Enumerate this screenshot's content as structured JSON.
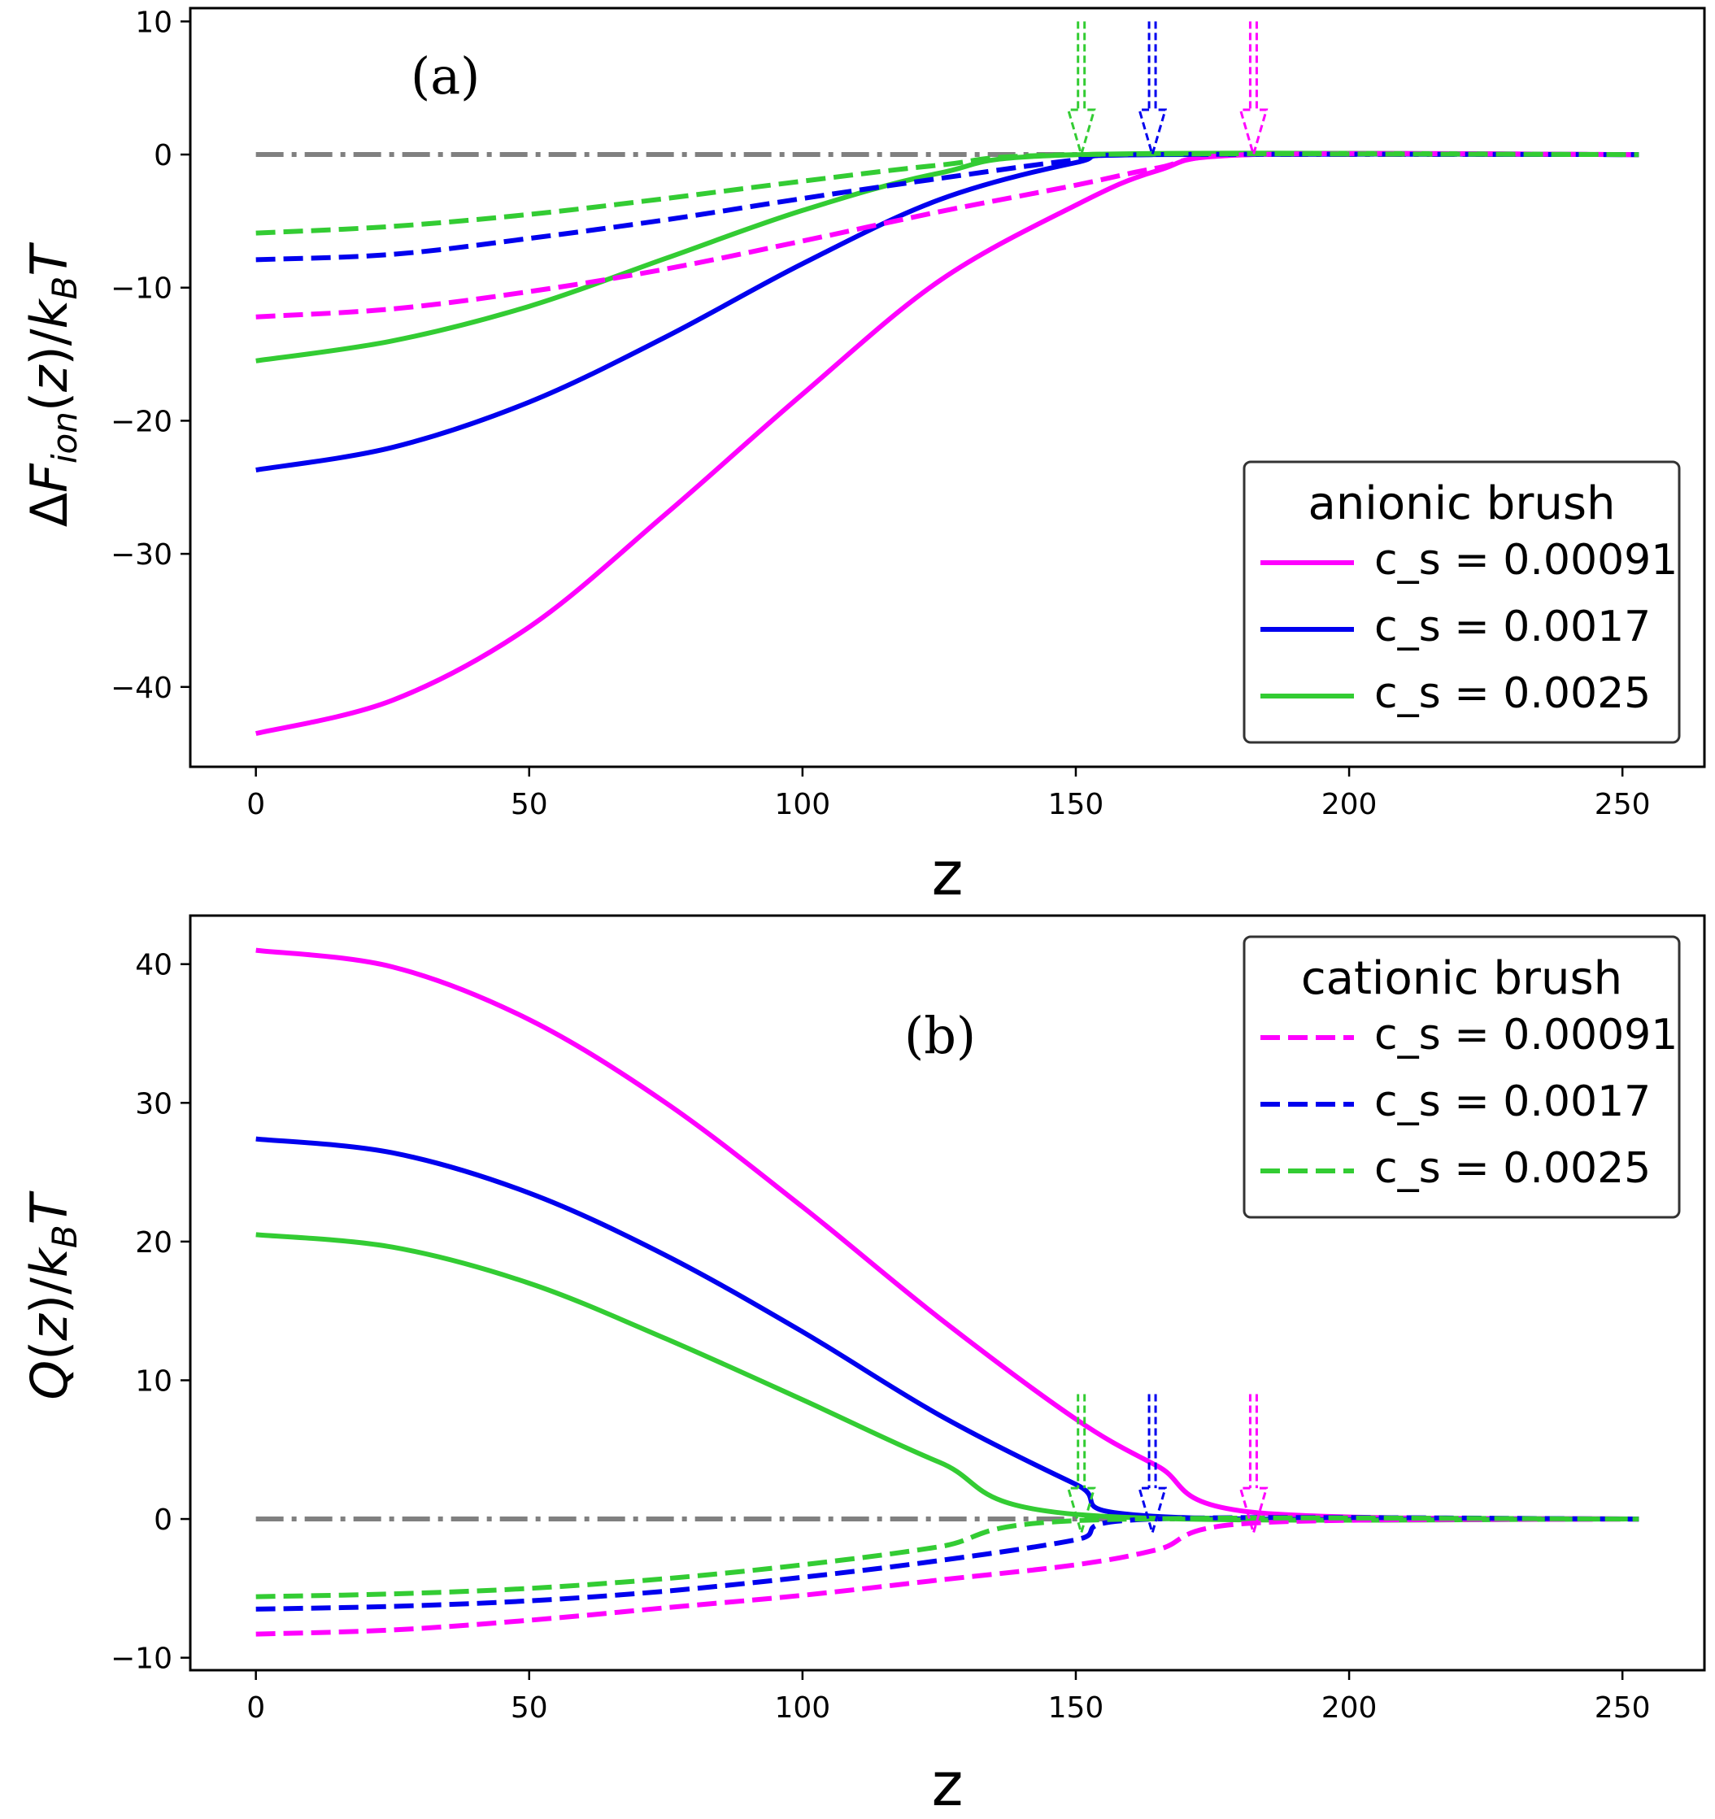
{
  "colors": {
    "magenta": "#ff00ff",
    "blue": "#0000ee",
    "green": "#33cc33",
    "zero_line": "#808080",
    "axes": "#000000",
    "legend_border": "#333333"
  },
  "chart_data": [
    {
      "type": "line",
      "annotation": "(a)",
      "xlabel": "z",
      "ylabel": "ΔF_ion(z)/k_B T",
      "xlim": [
        -12,
        265
      ],
      "ylim": [
        -46,
        11
      ],
      "xticks": [
        "0",
        "50",
        "100",
        "150",
        "200",
        "250"
      ],
      "yticks": [
        "10",
        "0",
        "−10",
        "−20",
        "−30",
        "−40"
      ],
      "grid": false,
      "zero_line": {
        "style": "dash-dot",
        "color": "#808080"
      },
      "legend": {
        "title": "anionic brush",
        "placement": "lower-right",
        "entries": [
          {
            "label": "c_s = 0.00091",
            "color": "#ff00ff",
            "style": "solid"
          },
          {
            "label": "c_s = 0.0017",
            "color": "#0000ee",
            "style": "solid"
          },
          {
            "label": "c_s = 0.0025",
            "color": "#33cc33",
            "style": "solid"
          }
        ]
      },
      "series": [
        {
          "legend": "c_s = 0.00091",
          "color": "#ff00ff",
          "style": "solid",
          "x": [
            0,
            25,
            50,
            75,
            100,
            125,
            150,
            165,
            182,
            253
          ],
          "y": [
            -43.5,
            -41,
            -35.5,
            -27,
            -18,
            -9.5,
            -3.8,
            -1.2,
            0,
            0
          ]
        },
        {
          "legend": "c_s = 0.0017",
          "color": "#0000ee",
          "style": "solid",
          "x": [
            0,
            25,
            50,
            75,
            100,
            125,
            150,
            164,
            253
          ],
          "y": [
            -23.7,
            -22,
            -18.6,
            -13.7,
            -8.2,
            -3.4,
            -0.6,
            0,
            0
          ]
        },
        {
          "legend": "c_s = 0.0025",
          "color": "#33cc33",
          "style": "solid",
          "x": [
            0,
            25,
            50,
            75,
            100,
            125,
            151,
            253
          ],
          "y": [
            -15.5,
            -14,
            -11.4,
            -7.8,
            -4.2,
            -1.4,
            0,
            0
          ]
        },
        {
          "color": "#ff00ff",
          "style": "dashed",
          "x": [
            0,
            25,
            50,
            75,
            100,
            125,
            150,
            165,
            182,
            253
          ],
          "y": [
            -12.2,
            -11.6,
            -10.3,
            -8.6,
            -6.5,
            -4.3,
            -2.3,
            -1.0,
            0,
            0
          ]
        },
        {
          "color": "#0000ee",
          "style": "dashed",
          "x": [
            0,
            25,
            50,
            75,
            100,
            125,
            150,
            164,
            253
          ],
          "y": [
            -7.9,
            -7.5,
            -6.3,
            -4.9,
            -3.3,
            -1.8,
            -0.4,
            0,
            0
          ]
        },
        {
          "color": "#33cc33",
          "style": "dashed",
          "x": [
            0,
            25,
            50,
            75,
            100,
            125,
            151,
            253
          ],
          "y": [
            -5.9,
            -5.4,
            -4.5,
            -3.3,
            -2.0,
            -0.8,
            0,
            0
          ]
        }
      ],
      "arrows": [
        {
          "x": 151,
          "color": "#33cc33",
          "y_from": 10,
          "y_to": 0
        },
        {
          "x": 164,
          "color": "#0000ee",
          "y_from": 10,
          "y_to": 0
        },
        {
          "x": 182.5,
          "color": "#ff00ff",
          "y_from": 10,
          "y_to": 0
        }
      ]
    },
    {
      "type": "line",
      "annotation": "(b)",
      "xlabel": "z",
      "ylabel": "Q(z)/k_B T",
      "xlim": [
        -12,
        265
      ],
      "ylim": [
        -10.9,
        43.5
      ],
      "xticks": [
        "0",
        "50",
        "100",
        "150",
        "200",
        "250"
      ],
      "yticks": [
        "40",
        "30",
        "20",
        "10",
        "0",
        "−10"
      ],
      "grid": false,
      "zero_line": {
        "style": "dash-dot",
        "color": "#808080"
      },
      "legend": {
        "title": "cationic brush",
        "placement": "upper-right",
        "entries": [
          {
            "label": "c_s = 0.00091",
            "color": "#ff00ff",
            "style": "dashed"
          },
          {
            "label": "c_s = 0.0017",
            "color": "#0000ee",
            "style": "dashed"
          },
          {
            "label": "c_s = 0.0025",
            "color": "#33cc33",
            "style": "dashed"
          }
        ]
      },
      "series": [
        {
          "color": "#ff00ff",
          "style": "solid",
          "x": [
            0,
            25,
            50,
            75,
            100,
            125,
            150,
            165,
            182,
            253
          ],
          "y": [
            41,
            39.8,
            36,
            30,
            22.5,
            14.5,
            7.2,
            3.8,
            0.5,
            0
          ]
        },
        {
          "color": "#0000ee",
          "style": "solid",
          "x": [
            0,
            25,
            50,
            75,
            100,
            125,
            150,
            164,
            253
          ],
          "y": [
            27.4,
            26.4,
            23.5,
            19,
            13.5,
            7.5,
            2.5,
            0.2,
            0
          ]
        },
        {
          "color": "#33cc33",
          "style": "solid",
          "x": [
            0,
            25,
            50,
            75,
            100,
            125,
            151,
            253
          ],
          "y": [
            20.5,
            19.6,
            17,
            13,
            8.6,
            4.1,
            0.3,
            0
          ]
        },
        {
          "legend": "c_s = 0.00091",
          "color": "#ff00ff",
          "style": "dashed",
          "x": [
            0,
            25,
            50,
            75,
            100,
            125,
            150,
            165,
            182,
            253
          ],
          "y": [
            -8.3,
            -8.0,
            -7.3,
            -6.4,
            -5.5,
            -4.4,
            -3.3,
            -2.2,
            -0.3,
            0
          ]
        },
        {
          "legend": "c_s = 0.0017",
          "color": "#0000ee",
          "style": "dashed",
          "x": [
            0,
            25,
            50,
            75,
            100,
            125,
            150,
            164,
            253
          ],
          "y": [
            -6.5,
            -6.3,
            -5.9,
            -5.2,
            -4.2,
            -3.0,
            -1.5,
            0,
            0
          ]
        },
        {
          "legend": "c_s = 0.0025",
          "color": "#33cc33",
          "style": "dashed",
          "x": [
            0,
            25,
            50,
            75,
            100,
            125,
            151,
            253
          ],
          "y": [
            -5.6,
            -5.4,
            -5.0,
            -4.3,
            -3.3,
            -2.0,
            -0.1,
            0
          ]
        }
      ],
      "arrows": [
        {
          "x": 151,
          "color": "#33cc33",
          "y_from": 9,
          "y_to": -1
        },
        {
          "x": 164,
          "color": "#0000ee",
          "y_from": 9,
          "y_to": -1
        },
        {
          "x": 182.5,
          "color": "#ff00ff",
          "y_from": 9,
          "y_to": -1
        }
      ]
    }
  ]
}
